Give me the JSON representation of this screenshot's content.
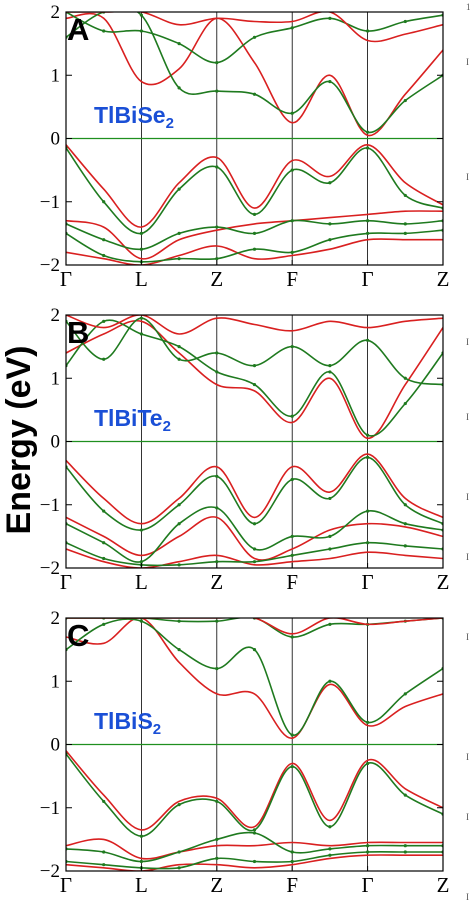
{
  "y_axis_label": "Energy (eV)",
  "colors": {
    "band_red": "#d92020",
    "band_green": "#1f7a1f",
    "fermi": "#1f8f1f",
    "compound": "#1a4fd6",
    "frame": "#000000"
  },
  "right_edge_fragments": [
    "1",
    "I",
    "I",
    "I",
    "I",
    "I",
    "I",
    "I",
    "I",
    "I",
    "I"
  ],
  "chart_data": [
    {
      "type": "line",
      "panel": "A",
      "compound": {
        "base": "TlBiSe",
        "subscript": "2"
      },
      "x_ticks": [
        "Γ",
        "L",
        "Z",
        "F",
        "Γ",
        "Z"
      ],
      "x_tick_positions": [
        0,
        1,
        2,
        3,
        4,
        5
      ],
      "ylim": [
        -2,
        2
      ],
      "y_ticks": [
        -2,
        -1,
        0,
        1,
        2
      ],
      "fermi_level": 0,
      "series": [
        {
          "color": "red",
          "x": [
            0,
            0.5,
            1,
            1.5,
            2,
            2.5,
            3,
            3.5,
            4,
            4.5,
            5
          ],
          "values": [
            1.9,
            1.9,
            0.9,
            1.1,
            1.9,
            1.2,
            0.25,
            1.0,
            0.05,
            0.7,
            1.4
          ]
        },
        {
          "color": "green",
          "x": [
            0,
            0.5,
            1,
            1.5,
            2,
            2.5,
            3,
            3.5,
            4,
            4.5,
            5
          ],
          "values": [
            1.6,
            2.0,
            1.95,
            0.8,
            0.75,
            0.7,
            0.4,
            0.9,
            0.1,
            0.6,
            1.0
          ]
        },
        {
          "color": "green",
          "x": [
            0,
            0.5,
            1,
            1.5,
            2,
            2.5,
            3,
            3.5,
            4,
            4.5,
            5
          ],
          "values": [
            2.0,
            1.7,
            1.7,
            1.5,
            1.2,
            1.6,
            1.75,
            1.9,
            1.7,
            1.85,
            1.95
          ]
        },
        {
          "color": "red",
          "x": [
            0,
            0.5,
            1,
            1.5,
            2,
            2.5,
            3,
            3.5,
            4,
            4.5,
            5
          ],
          "values": [
            2.0,
            2.0,
            2.0,
            1.8,
            1.9,
            1.85,
            1.85,
            2.0,
            1.55,
            1.65,
            1.8
          ]
        },
        {
          "color": "red",
          "x": [
            0,
            0.5,
            1,
            1.5,
            2,
            2.5,
            3,
            3.5,
            4,
            4.5,
            5
          ],
          "values": [
            -0.1,
            -0.8,
            -1.4,
            -0.7,
            -0.3,
            -1.1,
            -0.35,
            -0.6,
            -0.1,
            -0.7,
            -1.05
          ]
        },
        {
          "color": "green",
          "x": [
            0,
            0.5,
            1,
            1.5,
            2,
            2.5,
            3,
            3.5,
            4,
            4.5,
            5
          ],
          "values": [
            -0.15,
            -1.0,
            -1.5,
            -0.8,
            -0.45,
            -1.2,
            -0.5,
            -0.7,
            -0.15,
            -0.9,
            -1.1
          ]
        },
        {
          "color": "red",
          "x": [
            0,
            0.5,
            1,
            1.5,
            2,
            2.5,
            3,
            3.5,
            4,
            4.5,
            5
          ],
          "values": [
            -1.3,
            -1.4,
            -1.9,
            -1.6,
            -1.45,
            -1.35,
            -1.3,
            -1.25,
            -1.2,
            -1.15,
            -1.15
          ]
        },
        {
          "color": "green",
          "x": [
            0,
            0.5,
            1,
            1.5,
            2,
            2.5,
            3,
            3.5,
            4,
            4.5,
            5
          ],
          "values": [
            -1.35,
            -1.6,
            -1.75,
            -1.5,
            -1.4,
            -1.5,
            -1.3,
            -1.35,
            -1.3,
            -1.35,
            -1.3
          ]
        },
        {
          "color": "red",
          "x": [
            0,
            0.5,
            1,
            1.5,
            2,
            2.5,
            3,
            3.5,
            4,
            4.5,
            5
          ],
          "values": [
            -1.8,
            -1.9,
            -2.0,
            -1.85,
            -1.7,
            -1.9,
            -1.85,
            -1.75,
            -1.6,
            -1.6,
            -1.6
          ]
        },
        {
          "color": "green",
          "x": [
            0,
            0.5,
            1,
            1.5,
            2,
            2.5,
            3,
            3.5,
            4,
            4.5,
            5
          ],
          "values": [
            -1.5,
            -1.85,
            -1.95,
            -1.9,
            -1.9,
            -1.75,
            -1.8,
            -1.6,
            -1.5,
            -1.5,
            -1.45
          ]
        }
      ]
    },
    {
      "type": "line",
      "panel": "B",
      "compound": {
        "base": "TlBiTe",
        "subscript": "2"
      },
      "x_ticks": [
        "Γ",
        "L",
        "Z",
        "F",
        "Γ",
        "Z"
      ],
      "x_tick_positions": [
        0,
        1,
        2,
        3,
        4,
        5
      ],
      "ylim": [
        -2,
        2
      ],
      "y_ticks": [
        -2,
        -1,
        0,
        1,
        2
      ],
      "fermi_level": 0,
      "series": [
        {
          "color": "red",
          "x": [
            0,
            0.5,
            1,
            1.5,
            2,
            2.5,
            3,
            3.5,
            4,
            4.5,
            5
          ],
          "values": [
            1.4,
            1.7,
            1.9,
            1.4,
            0.9,
            0.8,
            0.3,
            1.0,
            0.05,
            0.9,
            1.8
          ]
        },
        {
          "color": "green",
          "x": [
            0,
            0.5,
            1,
            1.5,
            2,
            2.5,
            3,
            3.5,
            4,
            4.5,
            5
          ],
          "values": [
            1.2,
            1.9,
            1.7,
            1.5,
            1.1,
            0.9,
            0.4,
            1.1,
            0.1,
            0.6,
            1.4
          ]
        },
        {
          "color": "green",
          "x": [
            0,
            0.5,
            1,
            1.5,
            2,
            2.5,
            3,
            3.5,
            4,
            4.5,
            5
          ],
          "values": [
            1.9,
            1.3,
            1.95,
            1.3,
            1.4,
            1.2,
            1.5,
            1.2,
            1.6,
            1.0,
            0.9
          ]
        },
        {
          "color": "red",
          "x": [
            0,
            0.5,
            1,
            1.5,
            2,
            2.5,
            3,
            3.5,
            4,
            4.5,
            5
          ],
          "values": [
            2.0,
            1.8,
            2.0,
            1.7,
            1.95,
            1.85,
            1.75,
            1.9,
            1.8,
            1.9,
            1.95
          ]
        },
        {
          "color": "red",
          "x": [
            0,
            0.5,
            1,
            1.5,
            2,
            2.5,
            3,
            3.5,
            4,
            4.5,
            5
          ],
          "values": [
            -0.3,
            -0.9,
            -1.3,
            -0.9,
            -0.4,
            -1.2,
            -0.4,
            -0.8,
            -0.2,
            -0.9,
            -1.2
          ]
        },
        {
          "color": "green",
          "x": [
            0,
            0.5,
            1,
            1.5,
            2,
            2.5,
            3,
            3.5,
            4,
            4.5,
            5
          ],
          "values": [
            -0.4,
            -1.1,
            -1.4,
            -1.0,
            -0.55,
            -1.3,
            -0.6,
            -0.9,
            -0.25,
            -1.0,
            -1.3
          ]
        },
        {
          "color": "red",
          "x": [
            0,
            0.5,
            1,
            1.5,
            2,
            2.5,
            3,
            3.5,
            4,
            4.5,
            5
          ],
          "values": [
            -1.2,
            -1.5,
            -1.8,
            -1.5,
            -1.2,
            -1.85,
            -1.7,
            -1.4,
            -1.3,
            -1.35,
            -1.5
          ]
        },
        {
          "color": "green",
          "x": [
            0,
            0.5,
            1,
            1.5,
            2,
            2.5,
            3,
            3.5,
            4,
            4.5,
            5
          ],
          "values": [
            -1.3,
            -1.6,
            -1.9,
            -1.3,
            -1.05,
            -1.7,
            -1.5,
            -1.5,
            -1.1,
            -1.3,
            -1.4
          ]
        },
        {
          "color": "red",
          "x": [
            0,
            0.5,
            1,
            1.5,
            2,
            2.5,
            3,
            3.5,
            4,
            4.5,
            5
          ],
          "values": [
            -1.7,
            -1.9,
            -2.0,
            -1.9,
            -1.8,
            -1.95,
            -1.9,
            -1.85,
            -1.75,
            -1.8,
            -1.85
          ]
        },
        {
          "color": "green",
          "x": [
            0,
            0.5,
            1,
            1.5,
            2,
            2.5,
            3,
            3.5,
            4,
            4.5,
            5
          ],
          "values": [
            -1.6,
            -1.85,
            -1.95,
            -1.95,
            -1.9,
            -1.9,
            -1.8,
            -1.7,
            -1.6,
            -1.65,
            -1.7
          ]
        }
      ]
    },
    {
      "type": "line",
      "panel": "C",
      "compound": {
        "base": "TlBiS",
        "subscript": "2"
      },
      "x_ticks": [
        "Γ",
        "L",
        "Z",
        "F",
        "Γ",
        "Z"
      ],
      "x_tick_positions": [
        0,
        1,
        2,
        3,
        4,
        5
      ],
      "ylim": [
        -2,
        2
      ],
      "y_ticks": [
        -2,
        -1,
        0,
        1,
        2
      ],
      "fermi_level": 0,
      "series": [
        {
          "color": "red",
          "x": [
            0,
            0.5,
            1,
            1.5,
            2,
            2.5,
            3,
            3.5,
            4,
            4.5,
            5
          ],
          "values": [
            1.7,
            1.6,
            2.0,
            1.3,
            0.8,
            0.8,
            0.1,
            0.95,
            0.3,
            0.6,
            0.8
          ]
        },
        {
          "color": "green",
          "x": [
            0,
            0.5,
            1,
            1.5,
            2,
            2.5,
            3,
            3.5,
            4,
            4.5,
            5
          ],
          "values": [
            1.5,
            1.9,
            1.95,
            1.5,
            1.2,
            1.5,
            0.15,
            1.0,
            0.35,
            0.8,
            1.2
          ]
        },
        {
          "color": "green",
          "x": [
            0,
            0.5,
            1,
            1.5,
            2,
            2.5,
            3,
            3.5,
            4,
            4.5,
            5
          ],
          "values": [
            2.0,
            2.0,
            2.0,
            1.95,
            1.95,
            2.0,
            1.7,
            1.9,
            1.9,
            1.95,
            2.0
          ]
        },
        {
          "color": "red",
          "x": [
            0,
            0.5,
            1,
            1.5,
            2,
            2.5,
            3,
            3.5,
            4,
            4.5,
            5
          ],
          "values": [
            2.0,
            2.0,
            2.0,
            2.0,
            2.0,
            2.0,
            1.75,
            2.0,
            1.9,
            1.95,
            2.0
          ]
        },
        {
          "color": "red",
          "x": [
            0,
            0.5,
            1,
            1.5,
            2,
            2.5,
            3,
            3.5,
            4,
            4.5,
            5
          ],
          "values": [
            -0.1,
            -0.8,
            -1.35,
            -0.9,
            -0.85,
            -1.3,
            -0.3,
            -1.2,
            -0.25,
            -0.7,
            -1.0
          ]
        },
        {
          "color": "green",
          "x": [
            0,
            0.5,
            1,
            1.5,
            2,
            2.5,
            3,
            3.5,
            4,
            4.5,
            5
          ],
          "values": [
            -0.15,
            -0.9,
            -1.45,
            -0.95,
            -0.9,
            -1.35,
            -0.35,
            -1.3,
            -0.3,
            -0.8,
            -1.1
          ]
        },
        {
          "color": "red",
          "x": [
            0,
            0.5,
            1,
            1.5,
            2,
            2.5,
            3,
            3.5,
            4,
            4.5,
            5
          ],
          "values": [
            -1.6,
            -1.5,
            -1.8,
            -1.7,
            -1.6,
            -1.6,
            -1.55,
            -1.6,
            -1.55,
            -1.55,
            -1.55
          ]
        },
        {
          "color": "green",
          "x": [
            0,
            0.5,
            1,
            1.5,
            2,
            2.5,
            3,
            3.5,
            4,
            4.5,
            5
          ],
          "values": [
            -1.65,
            -1.7,
            -1.85,
            -1.7,
            -1.5,
            -1.4,
            -1.7,
            -1.65,
            -1.6,
            -1.6,
            -1.6
          ]
        },
        {
          "color": "red",
          "x": [
            0,
            0.5,
            1,
            1.5,
            2,
            2.5,
            3,
            3.5,
            4,
            4.5,
            5
          ],
          "values": [
            -1.9,
            -1.95,
            -2.0,
            -1.9,
            -1.9,
            -1.95,
            -1.9,
            -1.8,
            -1.75,
            -1.75,
            -1.75
          ]
        },
        {
          "color": "green",
          "x": [
            0,
            0.5,
            1,
            1.5,
            2,
            2.5,
            3,
            3.5,
            4,
            4.5,
            5
          ],
          "values": [
            -1.85,
            -1.9,
            -1.95,
            -1.95,
            -1.8,
            -1.85,
            -1.85,
            -1.75,
            -1.7,
            -1.7,
            -1.7
          ]
        }
      ]
    }
  ]
}
